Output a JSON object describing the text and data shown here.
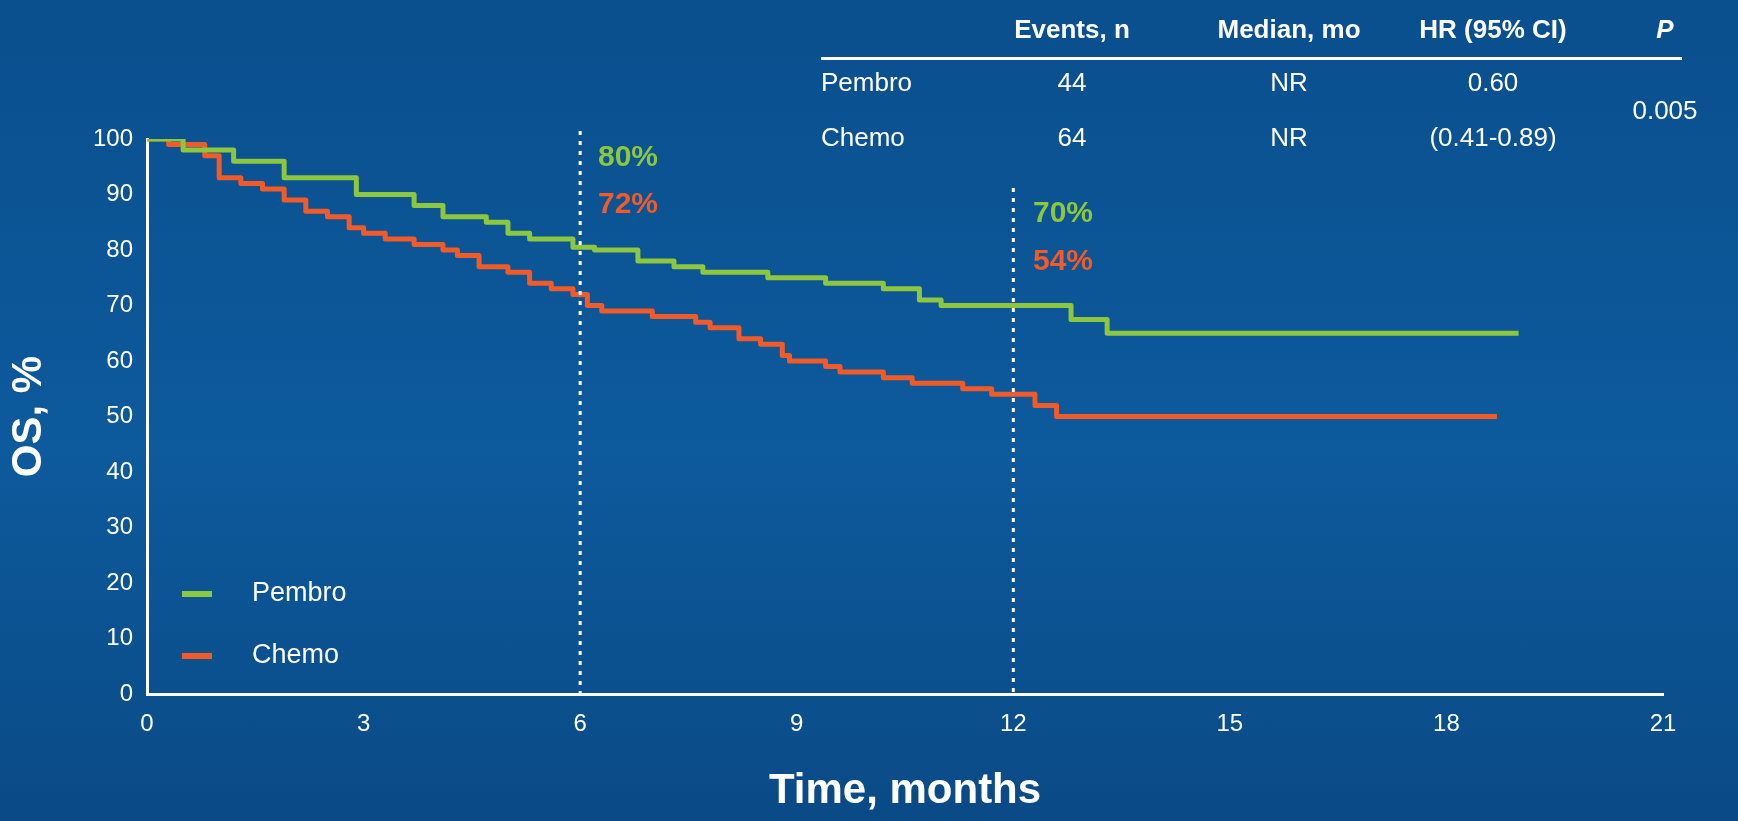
{
  "chart_data": {
    "type": "step",
    "xlabel": "Time, months",
    "ylabel": "OS, %",
    "xlim": [
      0,
      21
    ],
    "xticks": [
      0,
      3,
      6,
      9,
      12,
      15,
      18,
      21
    ],
    "ylim": [
      0,
      100
    ],
    "yticks": [
      0,
      10,
      20,
      30,
      40,
      50,
      60,
      70,
      80,
      90,
      100
    ],
    "grid": false,
    "legend": "bottom left",
    "marker": "none",
    "line_style": "solid",
    "series": [
      {
        "name": "Pembro",
        "color": "#8dc63f",
        "x": [
          0,
          0.5,
          1.2,
          1.9,
          2.9,
          3.7,
          4.1,
          4.7,
          5.0,
          5.3,
          5.9,
          6.2,
          6.8,
          7.3,
          7.7,
          8.6,
          9.4,
          10.2,
          10.7,
          11.0,
          12.8,
          13.3,
          19.0
        ],
        "values": [
          100,
          98,
          96,
          93,
          90,
          88,
          86,
          85,
          83,
          82,
          80.5,
          80,
          78,
          77,
          76,
          75,
          74,
          73,
          71,
          70,
          67.5,
          65,
          65
        ]
      },
      {
        "name": "Chemo",
        "color": "#f15a29",
        "x": [
          0,
          0.3,
          0.8,
          1.0,
          1.3,
          1.6,
          1.9,
          2.2,
          2.5,
          2.8,
          3.0,
          3.3,
          3.7,
          4.1,
          4.3,
          4.6,
          5.0,
          5.3,
          5.6,
          5.9,
          6.1,
          6.3,
          7.0,
          7.6,
          7.8,
          8.2,
          8.5,
          8.8,
          8.9,
          9.4,
          9.6,
          10.2,
          10.6,
          11.3,
          11.7,
          12.3,
          12.6,
          18.7
        ],
        "values": [
          100,
          99,
          97,
          93,
          92,
          91,
          89,
          87,
          86,
          84,
          83,
          82,
          81,
          80,
          79,
          77,
          76,
          74,
          73,
          72,
          70,
          69,
          68,
          67,
          66,
          64,
          63,
          61,
          60,
          59,
          58,
          57,
          56,
          55,
          54,
          52,
          50,
          50
        ]
      }
    ],
    "ref_lines": [
      {
        "axis": "x",
        "value": 6,
        "color": "#ffffff",
        "line_style": "dotted"
      },
      {
        "axis": "x",
        "value": 12,
        "color": "#ffffff",
        "line_style": "dotted"
      }
    ],
    "annotations": [
      "Events, n",
      "Median, mo",
      "HR (95% CI)",
      "P",
      "Pembro",
      "44",
      "NR",
      "0.60",
      "0.005",
      "Chemo",
      "64",
      "NR",
      "(0.41-0.89)",
      "80%",
      "72%",
      "70%",
      "54%"
    ]
  }
}
